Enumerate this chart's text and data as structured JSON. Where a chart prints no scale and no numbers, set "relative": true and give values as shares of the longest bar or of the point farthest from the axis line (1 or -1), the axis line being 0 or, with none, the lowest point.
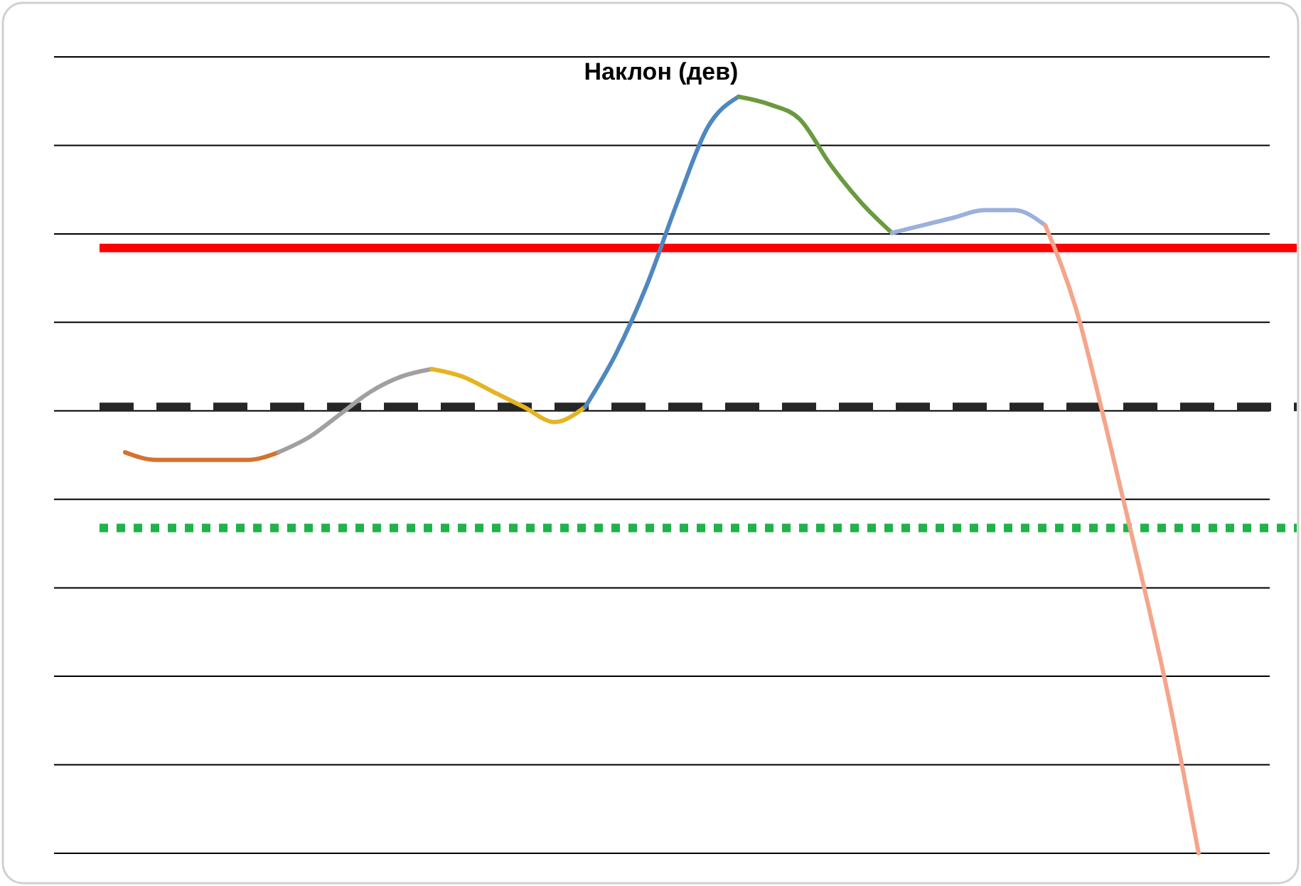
{
  "chart_data": {
    "type": "line",
    "title": "Наклон (дев)",
    "relative": true,
    "grid": "y",
    "line_style": "solid",
    "marker": "none",
    "categories": [
      null,
      null,
      null,
      null,
      null,
      null,
      null,
      null,
      null,
      null,
      null,
      null,
      null,
      null,
      null,
      null,
      null,
      null,
      null,
      null,
      null,
      null,
      null,
      null,
      null,
      null,
      null,
      null,
      null,
      null,
      null,
      null,
      null,
      null,
      null,
      null
    ],
    "series": [
      {
        "color": "#d4722f",
        "values": [
          0.53,
          0.52,
          0.52,
          0.52,
          0.52,
          0.53,
          null,
          null,
          null,
          null,
          null,
          null,
          null,
          null,
          null,
          null,
          null,
          null,
          null,
          null,
          null,
          null,
          null,
          null,
          null,
          null,
          null,
          null,
          null,
          null,
          null,
          null,
          null,
          null,
          null,
          null
        ]
      },
      {
        "color": "#a0a0a0",
        "values": [
          null,
          null,
          null,
          null,
          null,
          0.53,
          0.55,
          0.58,
          0.61,
          0.63,
          0.64,
          null,
          null,
          null,
          null,
          null,
          null,
          null,
          null,
          null,
          null,
          null,
          null,
          null,
          null,
          null,
          null,
          null,
          null,
          null,
          null,
          null,
          null,
          null,
          null,
          null
        ]
      },
      {
        "color": "#e6b422",
        "values": [
          null,
          null,
          null,
          null,
          null,
          null,
          null,
          null,
          null,
          null,
          0.64,
          0.63,
          0.61,
          0.59,
          0.57,
          0.59,
          null,
          null,
          null,
          null,
          null,
          null,
          null,
          null,
          null,
          null,
          null,
          null,
          null,
          null,
          null,
          null,
          null,
          null,
          null,
          null
        ]
      },
      {
        "color": "#4f88c0",
        "values": [
          null,
          null,
          null,
          null,
          null,
          null,
          null,
          null,
          null,
          null,
          null,
          null,
          null,
          null,
          null,
          0.59,
          0.66,
          0.75,
          0.86,
          0.96,
          1.0,
          null,
          null,
          null,
          null,
          null,
          null,
          null,
          null,
          null,
          null,
          null,
          null,
          null,
          null,
          null
        ]
      },
      {
        "color": "#6a9a3f",
        "values": [
          null,
          null,
          null,
          null,
          null,
          null,
          null,
          null,
          null,
          null,
          null,
          null,
          null,
          null,
          null,
          null,
          null,
          null,
          null,
          null,
          1.0,
          0.99,
          0.97,
          0.91,
          0.86,
          0.82,
          null,
          null,
          null,
          null,
          null,
          null,
          null,
          null,
          null,
          null
        ]
      },
      {
        "color": "#9bb0dc",
        "values": [
          null,
          null,
          null,
          null,
          null,
          null,
          null,
          null,
          null,
          null,
          null,
          null,
          null,
          null,
          null,
          null,
          null,
          null,
          null,
          null,
          null,
          null,
          null,
          null,
          null,
          0.82,
          0.83,
          0.84,
          0.85,
          0.85,
          0.83,
          null,
          null,
          null,
          null,
          null
        ]
      },
      {
        "color": "#f4a58a",
        "values": [
          null,
          null,
          null,
          null,
          null,
          null,
          null,
          null,
          null,
          null,
          null,
          null,
          null,
          null,
          null,
          null,
          null,
          null,
          null,
          null,
          null,
          null,
          null,
          null,
          null,
          null,
          null,
          null,
          null,
          null,
          0.83,
          0.72,
          0.56,
          0.39,
          0.21,
          0.0
        ]
      }
    ],
    "ref_lines": [
      {
        "axis": "y",
        "value": 0.8,
        "color": "#ff0000",
        "line_style": "solid"
      },
      {
        "axis": "y",
        "value": 0.59,
        "color": "#262626",
        "line_style": "dashed"
      },
      {
        "axis": "y",
        "value": 0.43,
        "color": "#1fb34a",
        "line_style": "dotted"
      }
    ]
  }
}
